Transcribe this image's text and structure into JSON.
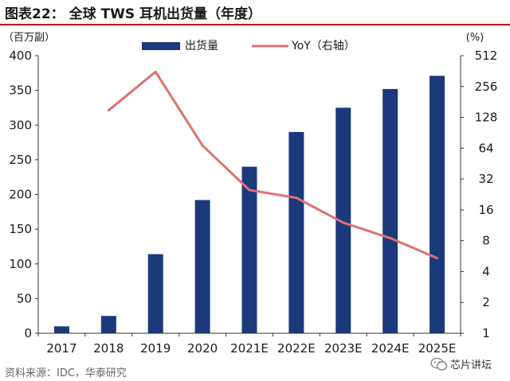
{
  "title": "图表22： 全球 TWS 耳机出货量（年度）",
  "source": "资料来源：IDC，华泰研究",
  "brand": "芯片讲坛",
  "colors": {
    "bar": "#1a3a7c",
    "line": "#e07070",
    "title_rule": "#c0001a"
  },
  "chart_data": {
    "type": "bar+line",
    "categories": [
      "2017",
      "2018",
      "2019",
      "2020",
      "2021E",
      "2022E",
      "2023E",
      "2024E",
      "2025E"
    ],
    "series": [
      {
        "name": "出货量",
        "type": "bar",
        "axis": "left",
        "values": [
          10,
          25,
          114,
          192,
          240,
          290,
          325,
          352,
          371
        ]
      },
      {
        "name": "YoY（右轴）",
        "type": "line",
        "axis": "right",
        "values": [
          null,
          150,
          356,
          68,
          25,
          21,
          12,
          8.5,
          5.4
        ]
      }
    ],
    "left_axis": {
      "unit": "（百万副）",
      "min": 0,
      "max": 400,
      "ticks": [
        "0",
        "50",
        "100",
        "150",
        "200",
        "250",
        "300",
        "350",
        "400"
      ]
    },
    "right_axis": {
      "unit": "(%)",
      "scale": "log2",
      "min": 1,
      "max": 512,
      "ticks": [
        "1",
        "2",
        "4",
        "8",
        "16",
        "32",
        "64",
        "128",
        "256",
        "512"
      ]
    },
    "legend_position": "top-center",
    "grid": false
  }
}
